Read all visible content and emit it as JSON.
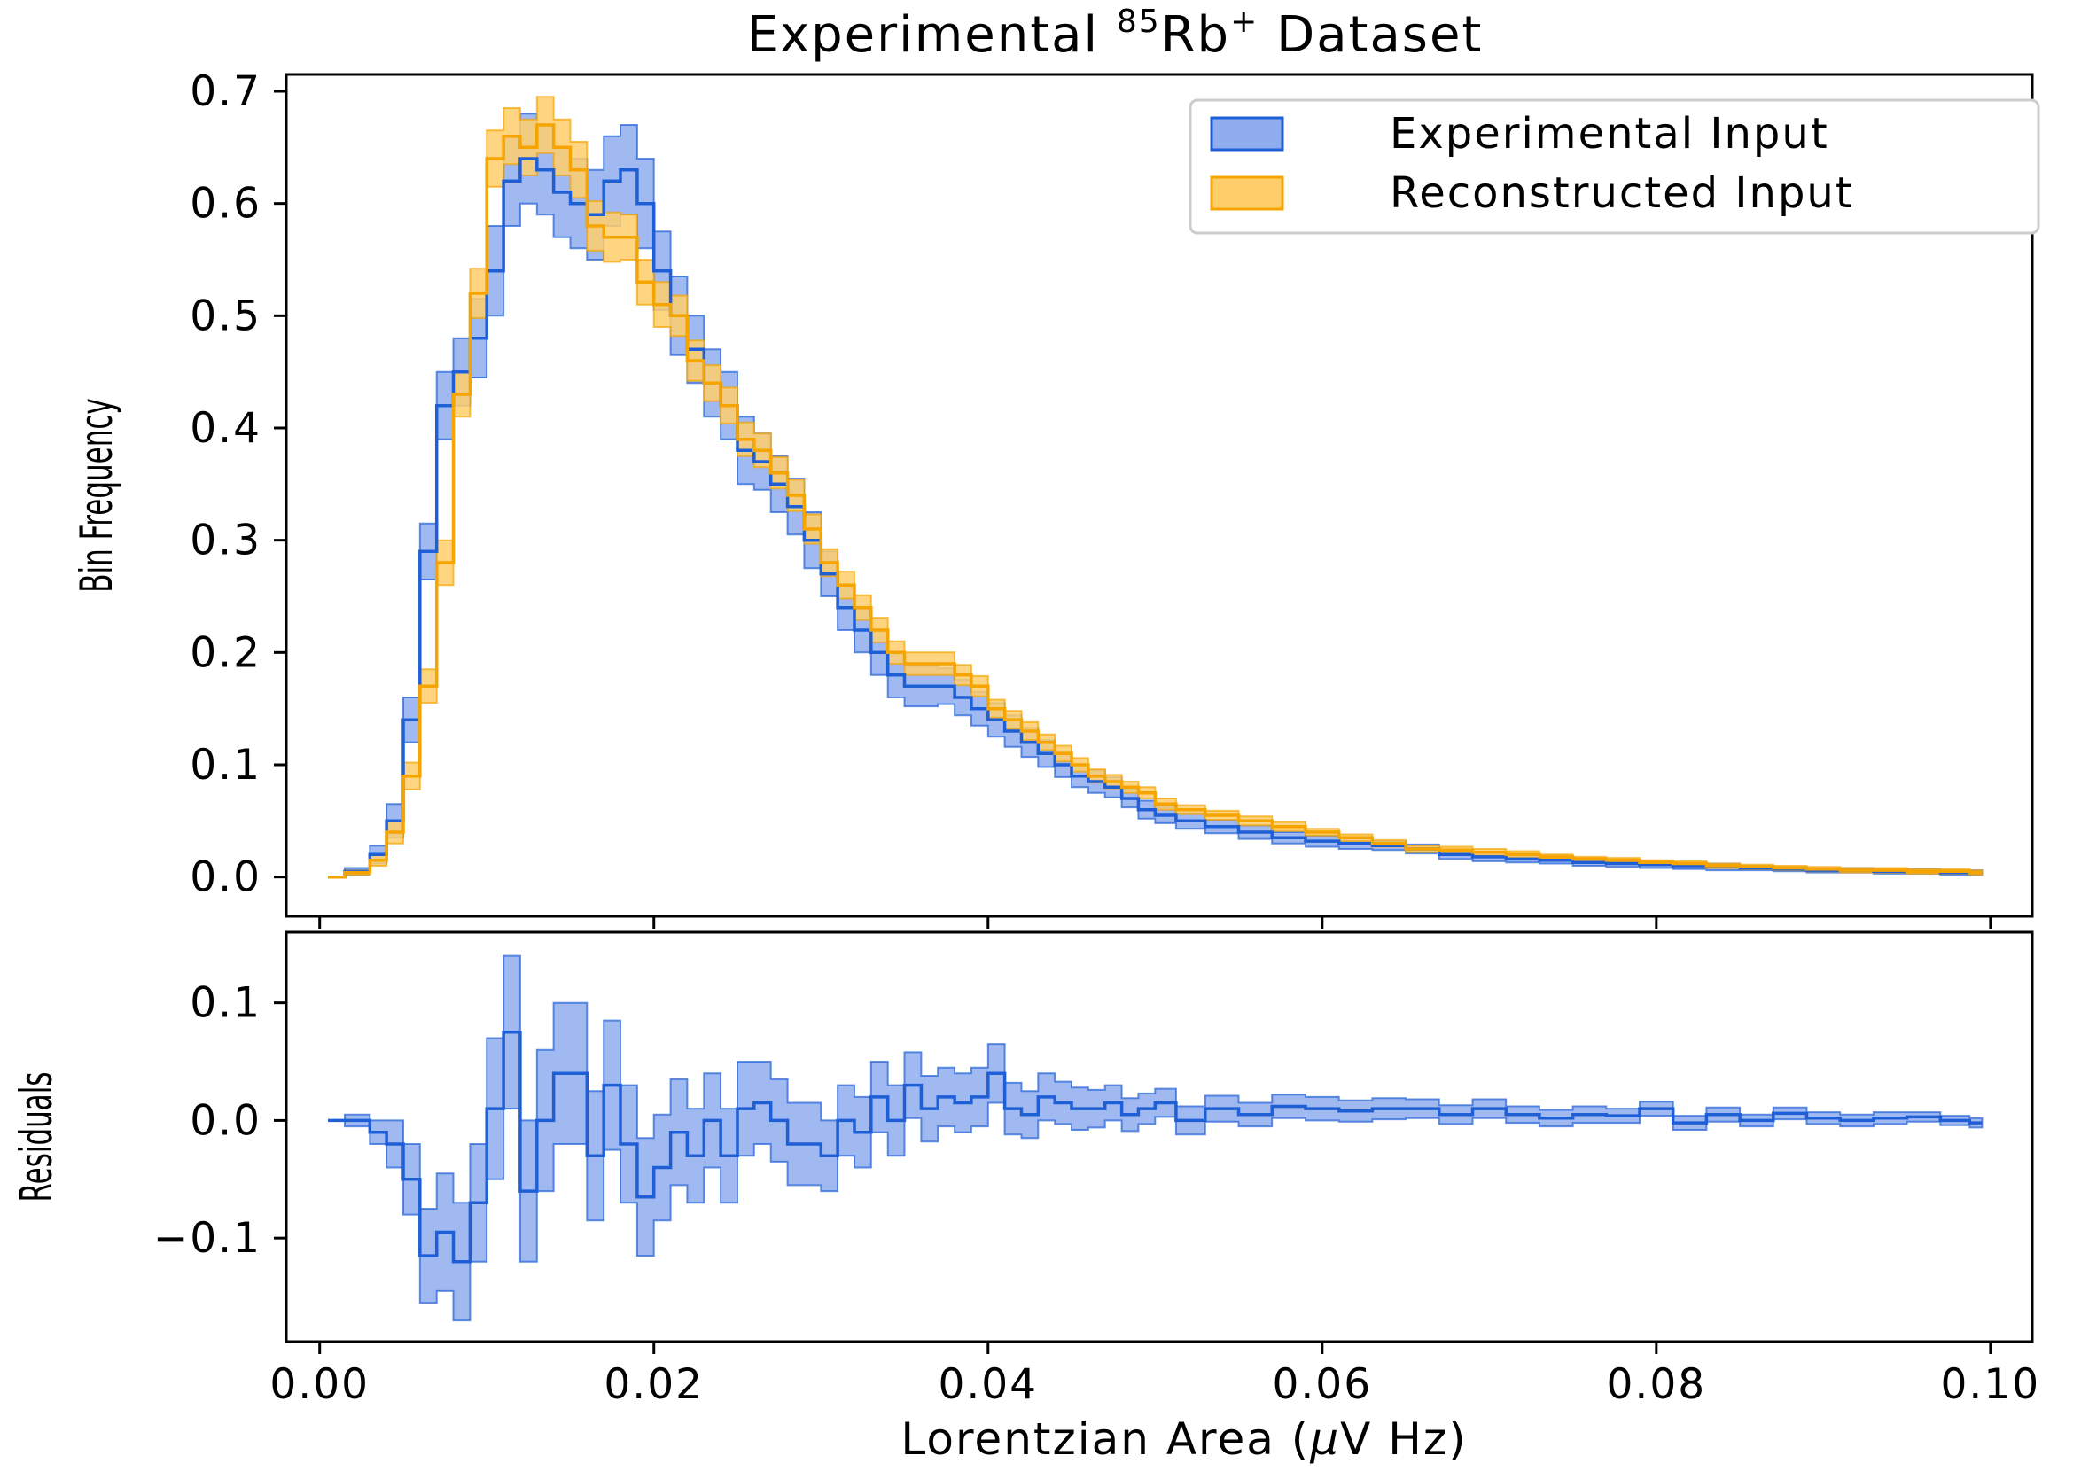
{
  "colors": {
    "experimental": "#1f5fd6",
    "experimental_fill": "#8fadee",
    "reconstructed": "#f5a400",
    "reconstructed_fill": "#ffce6b"
  },
  "chart_data": [
    {
      "type": "step-band",
      "panel": "main",
      "title_main": "Experimental ",
      "title_sup": "85",
      "title_mid": "Rb",
      "title_sup2": "+",
      "title_end": "  Dataset",
      "ylabel": "Bin Frequency",
      "xlim": [
        -0.002,
        0.1025
      ],
      "ylim": [
        -0.035,
        0.715
      ],
      "yticks": [
        "0.0",
        "0.1",
        "0.2",
        "0.3",
        "0.4",
        "0.5",
        "0.6",
        "0.7"
      ],
      "ytick_values": [
        0.0,
        0.1,
        0.2,
        0.3,
        0.4,
        0.5,
        0.6,
        0.7
      ],
      "legend_position": "top-right",
      "series": [
        {
          "name": "Experimental Input",
          "x": [
            0.0005,
            0.0025,
            0.0035,
            0.0045,
            0.0055,
            0.0065,
            0.0075,
            0.0085,
            0.0095,
            0.0105,
            0.0115,
            0.0125,
            0.0135,
            0.0145,
            0.0155,
            0.0165,
            0.0175,
            0.0185,
            0.0195,
            0.0205,
            0.0215,
            0.0225,
            0.0235,
            0.0245,
            0.0255,
            0.0265,
            0.0275,
            0.0285,
            0.0295,
            0.0305,
            0.0315,
            0.0325,
            0.0335,
            0.0345,
            0.0355,
            0.0365,
            0.0375,
            0.0385,
            0.0395,
            0.0405,
            0.0415,
            0.0425,
            0.0435,
            0.0445,
            0.0455,
            0.0465,
            0.0475,
            0.0485,
            0.0495,
            0.0505,
            0.052,
            0.054,
            0.056,
            0.058,
            0.06,
            0.062,
            0.064,
            0.066,
            0.068,
            0.07,
            0.072,
            0.074,
            0.076,
            0.078,
            0.08,
            0.082,
            0.084,
            0.086,
            0.088,
            0.09,
            0.092,
            0.094,
            0.096,
            0.098,
            0.0995
          ],
          "values": [
            0.0,
            0.005,
            0.02,
            0.05,
            0.14,
            0.29,
            0.42,
            0.45,
            0.48,
            0.54,
            0.62,
            0.64,
            0.63,
            0.61,
            0.6,
            0.59,
            0.62,
            0.63,
            0.6,
            0.54,
            0.5,
            0.47,
            0.44,
            0.42,
            0.38,
            0.37,
            0.35,
            0.33,
            0.3,
            0.27,
            0.24,
            0.22,
            0.2,
            0.18,
            0.17,
            0.17,
            0.17,
            0.16,
            0.15,
            0.14,
            0.13,
            0.12,
            0.11,
            0.1,
            0.09,
            0.085,
            0.08,
            0.07,
            0.06,
            0.055,
            0.05,
            0.045,
            0.04,
            0.035,
            0.032,
            0.03,
            0.028,
            0.025,
            0.02,
            0.018,
            0.016,
            0.015,
            0.013,
            0.012,
            0.011,
            0.01,
            0.009,
            0.008,
            0.007,
            0.006,
            0.006,
            0.005,
            0.005,
            0.004,
            0.004
          ],
          "err": [
            0.0,
            0.003,
            0.008,
            0.015,
            0.02,
            0.025,
            0.03,
            0.03,
            0.035,
            0.04,
            0.04,
            0.04,
            0.04,
            0.04,
            0.04,
            0.04,
            0.04,
            0.04,
            0.04,
            0.035,
            0.035,
            0.03,
            0.03,
            0.03,
            0.03,
            0.025,
            0.025,
            0.025,
            0.025,
            0.02,
            0.02,
            0.02,
            0.02,
            0.02,
            0.018,
            0.018,
            0.016,
            0.016,
            0.015,
            0.015,
            0.014,
            0.013,
            0.012,
            0.011,
            0.01,
            0.01,
            0.009,
            0.008,
            0.008,
            0.007,
            0.007,
            0.006,
            0.006,
            0.005,
            0.005,
            0.005,
            0.004,
            0.004,
            0.004,
            0.004,
            0.003,
            0.003,
            0.003,
            0.003,
            0.003,
            0.003,
            0.003,
            0.002,
            0.002,
            0.002,
            0.002,
            0.002,
            0.002,
            0.002,
            0.002
          ]
        },
        {
          "name": "Reconstructed Input",
          "x": [
            0.0005,
            0.0025,
            0.0035,
            0.0045,
            0.0055,
            0.0065,
            0.0075,
            0.0085,
            0.0095,
            0.0105,
            0.0115,
            0.0125,
            0.0135,
            0.0145,
            0.0155,
            0.0165,
            0.0175,
            0.0185,
            0.0195,
            0.0205,
            0.0215,
            0.0225,
            0.0235,
            0.0245,
            0.0255,
            0.0265,
            0.0275,
            0.0285,
            0.0295,
            0.0305,
            0.0315,
            0.0325,
            0.0335,
            0.0345,
            0.0355,
            0.0365,
            0.0375,
            0.0385,
            0.0395,
            0.0405,
            0.0415,
            0.0425,
            0.0435,
            0.0445,
            0.0455,
            0.0465,
            0.0475,
            0.0485,
            0.0495,
            0.0505,
            0.052,
            0.054,
            0.056,
            0.058,
            0.06,
            0.062,
            0.064,
            0.066,
            0.068,
            0.07,
            0.072,
            0.074,
            0.076,
            0.078,
            0.08,
            0.082,
            0.084,
            0.086,
            0.088,
            0.09,
            0.092,
            0.094,
            0.096,
            0.098,
            0.0995
          ],
          "values": [
            0.0,
            0.004,
            0.015,
            0.04,
            0.09,
            0.17,
            0.28,
            0.43,
            0.52,
            0.64,
            0.66,
            0.65,
            0.67,
            0.65,
            0.63,
            0.58,
            0.57,
            0.57,
            0.53,
            0.51,
            0.5,
            0.46,
            0.44,
            0.42,
            0.39,
            0.38,
            0.36,
            0.34,
            0.31,
            0.28,
            0.26,
            0.24,
            0.22,
            0.2,
            0.19,
            0.19,
            0.19,
            0.18,
            0.17,
            0.15,
            0.14,
            0.13,
            0.12,
            0.11,
            0.1,
            0.09,
            0.085,
            0.08,
            0.075,
            0.065,
            0.06,
            0.055,
            0.05,
            0.045,
            0.04,
            0.035,
            0.03,
            0.025,
            0.024,
            0.022,
            0.02,
            0.018,
            0.016,
            0.015,
            0.013,
            0.012,
            0.01,
            0.009,
            0.008,
            0.007,
            0.006,
            0.006,
            0.005,
            0.005,
            0.004
          ],
          "err": [
            0.0,
            0.002,
            0.005,
            0.01,
            0.012,
            0.015,
            0.02,
            0.02,
            0.022,
            0.025,
            0.025,
            0.025,
            0.025,
            0.025,
            0.025,
            0.022,
            0.022,
            0.02,
            0.02,
            0.02,
            0.018,
            0.018,
            0.016,
            0.016,
            0.015,
            0.015,
            0.014,
            0.014,
            0.013,
            0.012,
            0.012,
            0.011,
            0.011,
            0.01,
            0.01,
            0.01,
            0.01,
            0.009,
            0.009,
            0.008,
            0.008,
            0.008,
            0.007,
            0.007,
            0.006,
            0.006,
            0.006,
            0.005,
            0.005,
            0.005,
            0.004,
            0.004,
            0.004,
            0.004,
            0.003,
            0.003,
            0.003,
            0.003,
            0.003,
            0.003,
            0.003,
            0.002,
            0.002,
            0.002,
            0.002,
            0.002,
            0.002,
            0.002,
            0.002,
            0.002,
            0.002,
            0.002,
            0.002,
            0.002,
            0.002
          ]
        }
      ]
    },
    {
      "type": "step-band",
      "panel": "residuals",
      "xlabel_pre": "Lorentzian Area (",
      "xlabel_mu": "μ",
      "xlabel_post": "V Hz)",
      "ylabel": "Residuals",
      "xlim": [
        -0.002,
        0.1025
      ],
      "ylim": [
        -0.188,
        0.16
      ],
      "xticks": [
        "0.00",
        "0.02",
        "0.04",
        "0.06",
        "0.08",
        "0.10"
      ],
      "xtick_values": [
        0.0,
        0.02,
        0.04,
        0.06,
        0.08,
        0.1
      ],
      "yticks": [
        "−0.1",
        "0.0",
        "0.1"
      ],
      "ytick_values": [
        -0.1,
        0.0,
        0.1
      ],
      "series": [
        {
          "name": "Residuals",
          "x": [
            0.0005,
            0.0025,
            0.0035,
            0.0045,
            0.0055,
            0.0065,
            0.0075,
            0.0085,
            0.0095,
            0.0105,
            0.0115,
            0.0125,
            0.0135,
            0.0145,
            0.0155,
            0.0165,
            0.0175,
            0.0185,
            0.0195,
            0.0205,
            0.0215,
            0.0225,
            0.0235,
            0.0245,
            0.0255,
            0.0265,
            0.0275,
            0.0285,
            0.0295,
            0.0305,
            0.0315,
            0.0325,
            0.0335,
            0.0345,
            0.0355,
            0.0365,
            0.0375,
            0.0385,
            0.0395,
            0.0405,
            0.0415,
            0.0425,
            0.0435,
            0.0445,
            0.0455,
            0.0465,
            0.0475,
            0.0485,
            0.0495,
            0.0505,
            0.052,
            0.054,
            0.056,
            0.058,
            0.06,
            0.062,
            0.064,
            0.066,
            0.068,
            0.07,
            0.072,
            0.074,
            0.076,
            0.078,
            0.08,
            0.082,
            0.084,
            0.086,
            0.088,
            0.09,
            0.092,
            0.094,
            0.096,
            0.098,
            0.0995
          ],
          "values": [
            0.0,
            0.0,
            -0.01,
            -0.02,
            -0.05,
            -0.115,
            -0.095,
            -0.12,
            -0.07,
            0.01,
            0.075,
            -0.06,
            0.0,
            0.04,
            0.04,
            -0.03,
            0.03,
            -0.02,
            -0.065,
            -0.04,
            -0.01,
            -0.03,
            0.0,
            -0.03,
            0.01,
            0.015,
            0.0,
            -0.02,
            -0.02,
            -0.03,
            0.0,
            -0.01,
            0.02,
            0.0,
            0.03,
            0.01,
            0.02,
            0.015,
            0.02,
            0.04,
            0.01,
            0.005,
            0.02,
            0.015,
            0.01,
            0.01,
            0.015,
            0.005,
            0.01,
            0.015,
            0.0,
            0.01,
            0.005,
            0.012,
            0.01,
            0.008,
            0.01,
            0.01,
            0.005,
            0.01,
            0.005,
            0.002,
            0.005,
            0.004,
            0.01,
            -0.002,
            0.005,
            0.0,
            0.006,
            0.002,
            0.0,
            0.002,
            0.003,
            0.0,
            -0.002
          ],
          "err": [
            0.0,
            0.005,
            0.01,
            0.02,
            0.03,
            0.04,
            0.05,
            0.05,
            0.05,
            0.06,
            0.065,
            0.06,
            0.06,
            0.06,
            0.06,
            0.055,
            0.055,
            0.05,
            0.05,
            0.045,
            0.045,
            0.04,
            0.04,
            0.04,
            0.04,
            0.035,
            0.035,
            0.035,
            0.035,
            0.03,
            0.03,
            0.03,
            0.03,
            0.03,
            0.028,
            0.028,
            0.025,
            0.025,
            0.025,
            0.025,
            0.022,
            0.02,
            0.02,
            0.018,
            0.018,
            0.016,
            0.015,
            0.014,
            0.013,
            0.012,
            0.012,
            0.011,
            0.01,
            0.01,
            0.01,
            0.009,
            0.009,
            0.008,
            0.008,
            0.008,
            0.007,
            0.007,
            0.007,
            0.006,
            0.006,
            0.006,
            0.006,
            0.005,
            0.005,
            0.005,
            0.005,
            0.005,
            0.004,
            0.004,
            0.004
          ]
        }
      ]
    }
  ]
}
